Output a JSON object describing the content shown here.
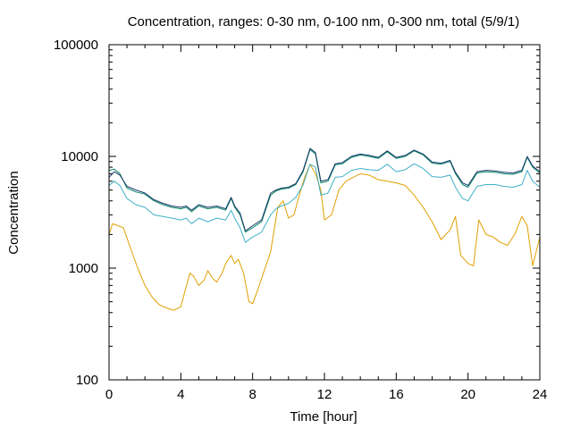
{
  "chart_data": {
    "type": "line",
    "title": "Concentration, ranges: 0-30 nm, 0-100 nm, 0-300 nm, total (5/9/1)",
    "xlabel": "Time [hour]",
    "ylabel": "Concentration",
    "xlim": [
      0,
      24
    ],
    "ylim": [
      100,
      100000
    ],
    "yscale": "log",
    "grid": false,
    "legend": "none",
    "x_ticks": [
      "0",
      "4",
      "8",
      "12",
      "16",
      "20",
      "24"
    ],
    "y_ticks": [
      "100",
      "1000",
      "10000",
      "100000"
    ],
    "series": [
      {
        "color": "#e0a000",
        "x": [
          0,
          0.2,
          0.5,
          0.8,
          1.2,
          1.6,
          2.0,
          2.4,
          2.8,
          3.2,
          3.6,
          4.0,
          4.2,
          4.5,
          4.7,
          5.0,
          5.3,
          5.5,
          5.8,
          6.0,
          6.3,
          6.5,
          6.8,
          7.0,
          7.2,
          7.5,
          7.8,
          8.0,
          8.3,
          8.6,
          9.0,
          9.4,
          9.7,
          10.0,
          10.3,
          10.6,
          10.9,
          11.2,
          11.5,
          11.8,
          12.0,
          12.4,
          12.8,
          13.2,
          13.6,
          14.0,
          14.5,
          15.0,
          15.5,
          16.0,
          16.5,
          17.0,
          17.5,
          18.0,
          18.5,
          19.0,
          19.3,
          19.6,
          20.0,
          20.3,
          20.6,
          21.0,
          21.4,
          21.8,
          22.2,
          22.6,
          23.0,
          23.3,
          23.6,
          24.0
        ],
        "values": [
          2000,
          2500,
          2400,
          2300,
          1500,
          1000,
          700,
          550,
          470,
          440,
          420,
          450,
          600,
          900,
          850,
          700,
          780,
          950,
          800,
          750,
          900,
          1100,
          1300,
          1100,
          1200,
          900,
          500,
          480,
          650,
          900,
          1400,
          3500,
          4000,
          2800,
          3000,
          4500,
          6500,
          8500,
          7000,
          5000,
          2700,
          3000,
          5000,
          6000,
          6500,
          7000,
          6800,
          6200,
          6000,
          5800,
          5500,
          4500,
          3500,
          2600,
          1800,
          2200,
          2900,
          1300,
          1100,
          1050,
          2700,
          2000,
          1900,
          1700,
          1600,
          2000,
          2900,
          2400,
          1050,
          1900
        ]
      },
      {
        "color": "#40b0c8",
        "x": [
          0,
          0.3,
          0.6,
          1.0,
          1.5,
          2.0,
          2.5,
          3.0,
          3.5,
          4.0,
          4.3,
          4.6,
          5.0,
          5.5,
          6.0,
          6.5,
          6.8,
          7.0,
          7.3,
          7.6,
          8.0,
          8.5,
          9.0,
          9.3,
          9.6,
          10.0,
          10.4,
          10.8,
          11.2,
          11.5,
          11.8,
          12.2,
          12.6,
          13.0,
          13.5,
          14.0,
          14.5,
          15.0,
          15.5,
          16.0,
          16.5,
          17.0,
          17.5,
          18.0,
          18.5,
          19.0,
          19.3,
          19.7,
          20.0,
          20.5,
          21.0,
          21.5,
          22.0,
          22.5,
          23.0,
          23.3,
          23.6,
          24.0
        ],
        "values": [
          5500,
          6000,
          5500,
          4200,
          3700,
          3500,
          3000,
          2900,
          2800,
          2700,
          2800,
          2500,
          2800,
          2600,
          2800,
          2700,
          3300,
          2800,
          2300,
          1700,
          1900,
          2100,
          3000,
          3400,
          3600,
          3800,
          4300,
          5500,
          8500,
          8000,
          4500,
          4700,
          6500,
          6600,
          7500,
          7800,
          7600,
          7500,
          8500,
          7300,
          7600,
          8600,
          7800,
          6600,
          6500,
          6800,
          5300,
          4200,
          4000,
          5400,
          5600,
          5600,
          5400,
          5300,
          5600,
          7500,
          6000,
          5300
        ]
      },
      {
        "color": "#0a8a6a",
        "x": [
          0,
          0.3,
          0.6,
          1.0,
          1.5,
          2.0,
          2.5,
          3.0,
          3.5,
          4.0,
          4.3,
          4.6,
          5.0,
          5.5,
          6.0,
          6.5,
          6.8,
          7.0,
          7.3,
          7.6,
          8.0,
          8.5,
          9.0,
          9.3,
          9.6,
          10.0,
          10.4,
          10.8,
          11.2,
          11.5,
          11.8,
          12.2,
          12.6,
          13.0,
          13.5,
          14.0,
          14.5,
          15.0,
          15.5,
          16.0,
          16.5,
          17.0,
          17.5,
          18.0,
          18.5,
          19.0,
          19.3,
          19.7,
          20.0,
          20.5,
          21.0,
          21.5,
          22.0,
          22.5,
          23.0,
          23.3,
          23.6,
          24.0
        ],
        "values": [
          7500,
          7700,
          7000,
          5200,
          4800,
          4600,
          4000,
          3700,
          3500,
          3400,
          3500,
          3200,
          3600,
          3400,
          3500,
          3300,
          4200,
          3500,
          3000,
          2100,
          2300,
          2600,
          4500,
          4900,
          5100,
          5200,
          5600,
          7200,
          11500,
          10500,
          5800,
          6000,
          8400,
          8600,
          9800,
          10300,
          10000,
          9600,
          11000,
          9600,
          10000,
          11200,
          10300,
          8700,
          8500,
          9000,
          7000,
          5600,
          5300,
          7100,
          7300,
          7200,
          7000,
          6900,
          7300,
          9800,
          8000,
          7100
        ]
      },
      {
        "color": "#1a3a6a",
        "x": [
          0,
          0.3,
          0.6,
          1.0,
          1.5,
          2.0,
          2.5,
          3.0,
          3.5,
          4.0,
          4.3,
          4.6,
          5.0,
          5.5,
          6.0,
          6.5,
          6.8,
          7.0,
          7.3,
          7.6,
          8.0,
          8.5,
          9.0,
          9.3,
          9.6,
          10.0,
          10.4,
          10.8,
          11.2,
          11.5,
          11.8,
          12.2,
          12.6,
          13.0,
          13.5,
          14.0,
          14.5,
          15.0,
          15.5,
          16.0,
          16.5,
          17.0,
          17.5,
          18.0,
          18.5,
          19.0,
          19.3,
          19.7,
          20.0,
          20.5,
          21.0,
          21.5,
          22.0,
          22.5,
          23.0,
          23.3,
          23.6,
          24.0
        ],
        "values": [
          6500,
          7300,
          6800,
          5400,
          5000,
          4700,
          4100,
          3800,
          3600,
          3500,
          3600,
          3300,
          3700,
          3500,
          3600,
          3400,
          4300,
          3600,
          3100,
          2150,
          2400,
          2700,
          4700,
          5000,
          5200,
          5300,
          5700,
          7400,
          11800,
          10800,
          6000,
          6200,
          8600,
          8800,
          10000,
          10500,
          10200,
          9800,
          11200,
          9800,
          10200,
          11400,
          10500,
          8900,
          8700,
          9200,
          7200,
          5800,
          5500,
          7300,
          7500,
          7400,
          7200,
          7100,
          7500,
          10000,
          8200,
          7300
        ]
      }
    ]
  }
}
